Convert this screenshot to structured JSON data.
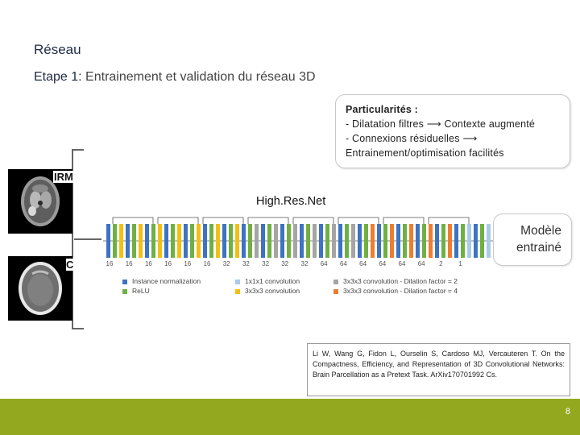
{
  "slide": {
    "title": "Réseau",
    "subtitle_prefix": "Etape 1:",
    "subtitle_rest": " Entrainement et validation du réseau 3D",
    "page_number": "8"
  },
  "features_box": {
    "heading": "Particularités :",
    "lines": [
      "- Dilatation filtres ⟶ Contexte augmenté",
      "- Connexions résiduelles ⟶",
      "Entrainement/optimisation facilités"
    ]
  },
  "inputs": {
    "mri_label": "IRM",
    "ct_label": "C"
  },
  "network": {
    "title": "High.Res.Net",
    "channel_labels": [
      "16",
      "16",
      "16",
      "16",
      "16",
      "16",
      "32",
      "32",
      "32",
      "32",
      "32",
      "64",
      "64",
      "64",
      "64",
      "64",
      "64",
      "2",
      "1"
    ],
    "legend": [
      {
        "label": "Instance normalization",
        "color": "#3d73c0"
      },
      {
        "label": "ReLU",
        "color": "#70b043"
      },
      {
        "label": "1x1x1 convolution",
        "color": "#a9cbe8"
      },
      {
        "label": "3x3x3 convolution",
        "color": "#f2c014"
      },
      {
        "label": "3x3x3 convolution - Dilation factor = 2",
        "color": "#a5a5a5"
      },
      {
        "label": "3x3x3 convolution - Dilation factor = 4",
        "color": "#ed7d31"
      }
    ]
  },
  "output": {
    "line1": "Modèle",
    "line2": "entrainé"
  },
  "reference": {
    "text": "Li W, Wang G, Fidon L, Ourselin S, Cardoso MJ, Vercauteren T. On the Compactness, Efficiency, and Representation of 3D Convolutional Networks: Brain Parcellation as a Pretext Task. ArXiv170701992 Cs."
  },
  "colors": {
    "accent": "#94a81f",
    "title": "#1f2a44"
  }
}
